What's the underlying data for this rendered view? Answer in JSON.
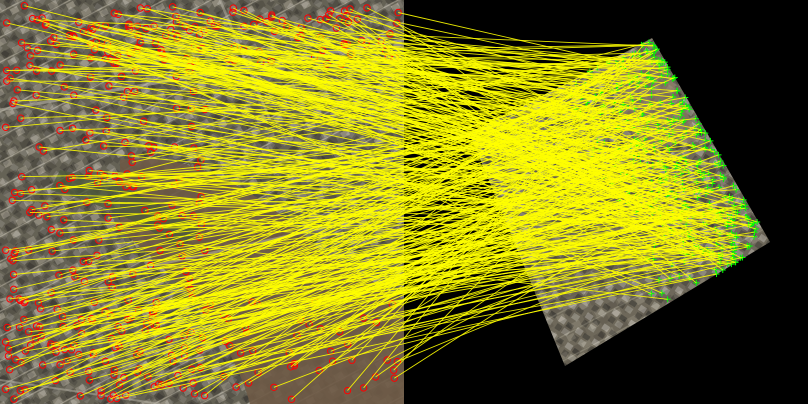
{
  "image": {
    "kind": "feature-matching-visualization",
    "left_panel": "aerial-photo-suburban-neighborhood",
    "right_panel": "rotated-scaled-aerial-photo-on-black",
    "background_color": "#000000",
    "keypoint_left_color": "#ff0000",
    "keypoint_right_color": "#00ff00",
    "match_line_color": "#ffff00",
    "terrain_colors": [
      "#6b6b5e",
      "#7a6a55",
      "#4f5a3f",
      "#8a8a80",
      "#5a4e3e"
    ]
  }
}
